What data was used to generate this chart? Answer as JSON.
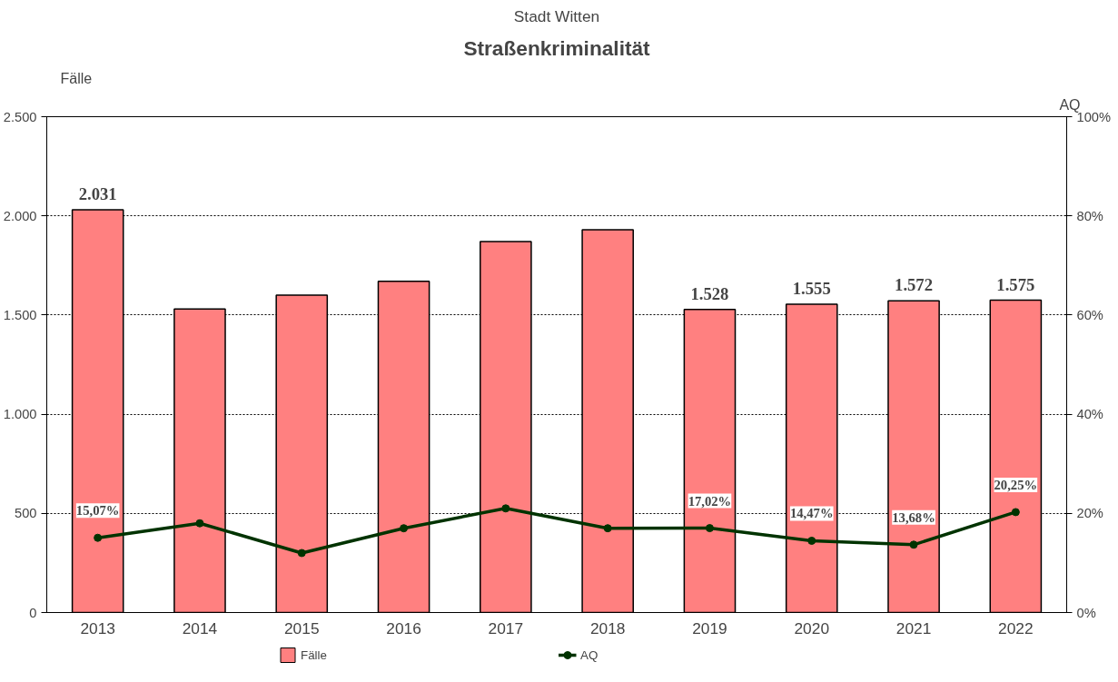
{
  "chart_data": {
    "type": "bar",
    "subtitle": "Stadt Witten",
    "title": "Straßenkriminalität",
    "ylabel": "Fälle",
    "y2label": "AQ",
    "categories": [
      "2013",
      "2014",
      "2015",
      "2016",
      "2017",
      "2018",
      "2019",
      "2020",
      "2021",
      "2022"
    ],
    "series": [
      {
        "name": "Fälle",
        "color": "#ff8080",
        "values": [
          2031,
          1530,
          1600,
          1670,
          1870,
          1930,
          1528,
          1555,
          1572,
          1575
        ],
        "value_labels": [
          "2.031",
          null,
          null,
          null,
          null,
          null,
          "1.528",
          "1.555",
          "1.572",
          "1.575"
        ]
      },
      {
        "name": "AQ",
        "type": "line",
        "axis": "y2",
        "color": "#003300",
        "marker": "circle",
        "values": [
          15.07,
          18,
          12,
          17,
          21,
          17,
          17.02,
          14.47,
          13.68,
          20.25
        ],
        "value_labels": [
          "15,07%",
          null,
          null,
          null,
          null,
          null,
          "17,02%",
          "14,47%",
          "13,68%",
          "20,25%"
        ]
      }
    ],
    "ylim": [
      0,
      2500
    ],
    "yticks": [
      {
        "value": 0,
        "label": "0"
      },
      {
        "value": 500,
        "label": "500"
      },
      {
        "value": 1000,
        "label": "1.000"
      },
      {
        "value": 1500,
        "label": "1.500"
      },
      {
        "value": 2000,
        "label": "2.000"
      },
      {
        "value": 2500,
        "label": "2.500"
      }
    ],
    "y2lim": [
      0,
      100
    ],
    "y2ticks": [
      {
        "value": 0,
        "label": "0%"
      },
      {
        "value": 20,
        "label": "20%"
      },
      {
        "value": 40,
        "label": "40%"
      },
      {
        "value": 60,
        "label": "60%"
      },
      {
        "value": 80,
        "label": "80%"
      },
      {
        "value": 100,
        "label": "100%"
      }
    ],
    "grid": "y",
    "legend": "bottom"
  }
}
